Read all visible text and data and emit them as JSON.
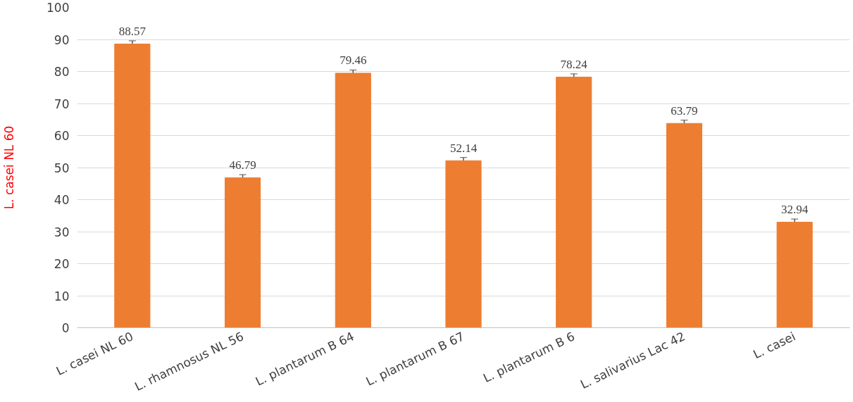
{
  "chart_data": {
    "type": "bar",
    "ylabel": "L. casei NL 60",
    "categories": [
      "L. casei NL 60",
      "L. rhamnosus NL 56",
      "L. plantarum B 64",
      "L. plantarum B 67",
      "L. plantarum B 6",
      "L. salivarius Lac 42",
      "L. casei"
    ],
    "values": [
      88.57,
      46.79,
      79.46,
      52.14,
      78.24,
      63.79,
      32.94
    ],
    "errors": [
      1,
      1,
      1,
      1,
      1,
      1,
      1
    ],
    "color": "#ed7d31",
    "data_labels": true,
    "grid": "y",
    "ylim": [
      0,
      100
    ],
    "yticks": [
      0,
      10,
      20,
      30,
      40,
      50,
      60,
      70,
      80,
      90,
      100
    ]
  }
}
